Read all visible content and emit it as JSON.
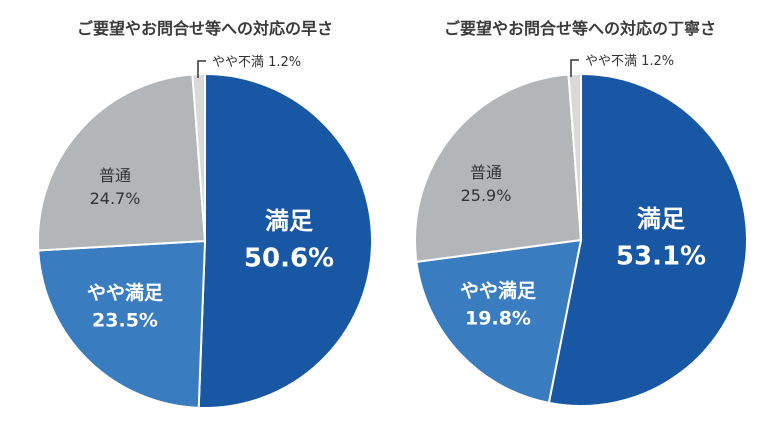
{
  "chart_data": [
    {
      "type": "pie",
      "title": "ご要望やお問合せ等への対応の早さ",
      "slices": [
        {
          "label": "満足",
          "value": 50.6,
          "value_label": "50.6%",
          "color": "#1857a4"
        },
        {
          "label": "やや満足",
          "value": 23.5,
          "value_label": "23.5%",
          "color": "#3a7cc0"
        },
        {
          "label": "普通",
          "value": 24.7,
          "value_label": "24.7%",
          "color": "#b3b6b9"
        },
        {
          "label": "やや不満",
          "value": 1.2,
          "value_label": "1.2%",
          "color": "#d9d9d9"
        }
      ]
    },
    {
      "type": "pie",
      "title": "ご要望やお問合せ等への対応の丁寧さ",
      "slices": [
        {
          "label": "満足",
          "value": 53.1,
          "value_label": "53.1%",
          "color": "#1857a4"
        },
        {
          "label": "やや満足",
          "value": 19.8,
          "value_label": "19.8%",
          "color": "#3a7cc0"
        },
        {
          "label": "普通",
          "value": 25.9,
          "value_label": "25.9%",
          "color": "#b3b6b9"
        },
        {
          "label": "やや不満",
          "value": 1.2,
          "value_label": "1.2%",
          "color": "#d9d9d9"
        }
      ]
    }
  ]
}
